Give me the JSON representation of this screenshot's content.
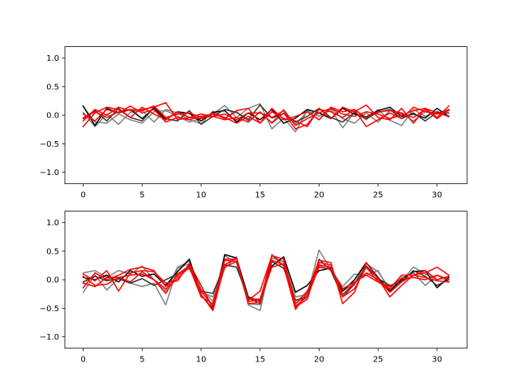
{
  "chart_data": [
    {
      "type": "line",
      "title": "",
      "xlabel": "",
      "ylabel": "",
      "xlim": [
        -1.55,
        32.55
      ],
      "ylim": [
        -1.2,
        1.2
      ],
      "xticks": [
        0,
        5,
        10,
        15,
        20,
        25,
        30
      ],
      "xtick_labels": [
        "0",
        "5",
        "10",
        "15",
        "20",
        "25",
        "30"
      ],
      "yticks": [
        1.0,
        0.5,
        0.0,
        -0.5,
        -1.0
      ],
      "ytick_labels": [
        "1.0",
        "0.5",
        "0.0",
        "−0.5",
        "−1.0"
      ],
      "grid": false,
      "x": [
        0,
        1,
        2,
        3,
        4,
        5,
        6,
        7,
        8,
        9,
        10,
        11,
        12,
        13,
        14,
        15,
        16,
        17,
        18,
        19,
        20,
        21,
        22,
        23,
        24,
        25,
        26,
        27,
        28,
        29,
        30,
        31
      ],
      "series": [
        {
          "color": "#808080",
          "values": [
            0.15,
            -0.12,
            -0.14,
            0.02,
            -0.08,
            -0.14,
            0.06,
            0.08,
            -0.02,
            -0.12,
            -0.06,
            0.02,
            0.17,
            -0.04,
            0.12,
            0.2,
            -0.24,
            -0.05,
            -0.29,
            0.08,
            -0.02,
            0.1,
            -0.22,
            0.05,
            -0.08,
            0.1,
            -0.09,
            -0.18,
            0.1,
            -0.02,
            0.07,
            -0.03
          ]
        },
        {
          "color": "#808080",
          "values": [
            0.05,
            -0.2,
            0.02,
            -0.16,
            0.05,
            0.08,
            -0.12,
            0.1,
            0.04,
            -0.08,
            -0.15,
            0.07,
            -0.05,
            0.06,
            -0.1,
            0.05,
            -0.13,
            0.1,
            -0.16,
            0.06,
            -0.08,
            0.12,
            -0.06,
            -0.14,
            0.04,
            -0.12,
            0.08,
            0.02,
            -0.1,
            0.06,
            0.03,
            0.1
          ]
        },
        {
          "color": "#000000",
          "values": [
            0.16,
            -0.18,
            0.12,
            0.04,
            0.1,
            -0.06,
            0.12,
            -0.08,
            0.06,
            0.03,
            -0.1,
            0.05,
            0.08,
            -0.12,
            0.04,
            -0.08,
            0.1,
            -0.14,
            -0.05,
            0.1,
            0.04,
            -0.06,
            0.12,
            0.02,
            -0.03,
            0.08,
            0.14,
            -0.02,
            0.02,
            -0.05,
            0.12,
            -0.02
          ]
        },
        {
          "color": "#333333",
          "values": [
            -0.05,
            0.08,
            -0.1,
            0.12,
            -0.04,
            -0.1,
            0.14,
            -0.06,
            -0.1,
            0.08,
            -0.16,
            -0.02,
            0.1,
            0.05,
            -0.08,
            0.18,
            -0.05,
            0.03,
            -0.12,
            -0.02,
            0.12,
            -0.04,
            -0.12,
            0.05,
            -0.06,
            0.05,
            0.1,
            -0.06,
            0.04,
            -0.1,
            0.05,
            0.04
          ]
        },
        {
          "color": "#ff0000",
          "values": [
            -0.1,
            0.1,
            0.0,
            0.14,
            0.08,
            0.1,
            0.14,
            0.22,
            -0.08,
            -0.04,
            -0.06,
            0.04,
            -0.06,
            0.08,
            0.12,
            -0.14,
            0.06,
            -0.06,
            -0.1,
            -0.2,
            0.12,
            -0.06,
            0.14,
            0.06,
            0.18,
            -0.04,
            -0.08,
            0.12,
            -0.14,
            0.12,
            -0.04,
            0.16
          ]
        },
        {
          "color": "#ff0000",
          "values": [
            -0.2,
            0.04,
            0.14,
            0.1,
            -0.04,
            0.14,
            0.02,
            -0.08,
            0.06,
            -0.04,
            0.02,
            -0.02,
            -0.08,
            -0.04,
            -0.12,
            0.06,
            -0.14,
            0.04,
            -0.24,
            -0.16,
            0.1,
            0.06,
            -0.04,
            0.1,
            -0.2,
            -0.08,
            0.04,
            -0.06,
            0.14,
            0.06,
            0.02,
            0.08
          ]
        },
        {
          "color": "#ff0000",
          "values": [
            0.02,
            -0.1,
            0.1,
            0.04,
            0.16,
            0.04,
            0.1,
            -0.12,
            -0.04,
            -0.08,
            -0.02,
            0.02,
            -0.04,
            -0.14,
            -0.02,
            -0.14,
            0.12,
            -0.08,
            -0.02,
            0.06,
            -0.08,
            0.14,
            0.06,
            0.1,
            -0.04,
            0.06,
            0.08,
            0.04,
            -0.04,
            0.1,
            -0.06,
            0.1
          ]
        },
        {
          "color": "#ff0000",
          "values": [
            -0.06,
            0.06,
            -0.04,
            0.06,
            0.1,
            0.08,
            0.16,
            -0.04,
            0.02,
            0.04,
            -0.04,
            -0.02,
            0.02,
            -0.08,
            0.04,
            0.04,
            -0.04,
            0.08,
            -0.18,
            -0.06,
            0.04,
            0.12,
            0.02,
            -0.02,
            0.06,
            0.02,
            -0.06,
            0.0,
            0.08,
            0.12,
            0.04,
            -0.02
          ]
        }
      ]
    },
    {
      "type": "line",
      "title": "",
      "xlabel": "",
      "ylabel": "",
      "xlim": [
        -1.55,
        32.55
      ],
      "ylim": [
        -1.2,
        1.2
      ],
      "xticks": [
        0,
        5,
        10,
        15,
        20,
        25,
        30
      ],
      "xtick_labels": [
        "0",
        "5",
        "10",
        "15",
        "20",
        "25",
        "30"
      ],
      "yticks": [
        1.0,
        0.5,
        0.0,
        -0.5,
        -1.0
      ],
      "ytick_labels": [
        "1.0",
        "0.5",
        "0.0",
        "−0.5",
        "−1.0"
      ],
      "grid": false,
      "x": [
        0,
        1,
        2,
        3,
        4,
        5,
        6,
        7,
        8,
        9,
        10,
        11,
        12,
        13,
        14,
        15,
        16,
        17,
        18,
        19,
        20,
        21,
        22,
        23,
        24,
        25,
        26,
        27,
        28,
        29,
        30,
        31
      ],
      "series": [
        {
          "color": "#808080",
          "values": [
            -0.22,
            0.08,
            -0.18,
            0.02,
            -0.06,
            -0.12,
            -0.06,
            -0.44,
            0.2,
            0.28,
            -0.22,
            -0.3,
            0.2,
            0.4,
            -0.44,
            -0.54,
            0.38,
            0.32,
            -0.3,
            -0.26,
            0.52,
            0.18,
            -0.2,
            -0.06,
            0.28,
            0.14,
            -0.16,
            -0.02,
            0.22,
            0.1,
            0.0,
            0.04
          ]
        },
        {
          "color": "#808080",
          "values": [
            0.12,
            0.16,
            0.04,
            0.16,
            0.1,
            0.24,
            0.0,
            -0.2,
            0.22,
            0.32,
            -0.16,
            -0.38,
            0.42,
            0.3,
            -0.42,
            -0.44,
            0.42,
            0.3,
            -0.42,
            -0.26,
            0.24,
            0.18,
            -0.12,
            0.1,
            0.08,
            0.16,
            -0.2,
            0.04,
            0.12,
            -0.1,
            0.08,
            -0.04
          ]
        },
        {
          "color": "#000000",
          "values": [
            0.04,
            0.0,
            0.08,
            -0.04,
            0.16,
            0.06,
            0.1,
            -0.1,
            0.14,
            0.36,
            -0.26,
            -0.52,
            0.44,
            0.38,
            -0.3,
            -0.38,
            0.24,
            0.4,
            -0.22,
            -0.1,
            0.16,
            0.2,
            -0.2,
            0.0,
            0.3,
            0.04,
            -0.2,
            0.0,
            0.14,
            0.16,
            -0.14,
            0.04
          ]
        },
        {
          "color": "#333333",
          "values": [
            -0.04,
            0.06,
            -0.02,
            0.02,
            -0.06,
            0.02,
            -0.1,
            0.0,
            0.1,
            0.2,
            -0.2,
            -0.24,
            0.26,
            0.22,
            -0.32,
            -0.42,
            0.32,
            0.2,
            -0.36,
            -0.3,
            0.36,
            0.16,
            -0.3,
            -0.08,
            0.24,
            0.02,
            -0.1,
            -0.04,
            0.16,
            0.06,
            -0.1,
            0.0
          ]
        },
        {
          "color": "#ff0000",
          "values": [
            0.1,
            -0.02,
            0.16,
            -0.2,
            0.12,
            0.16,
            0.14,
            -0.06,
            -0.02,
            0.28,
            -0.1,
            -0.5,
            0.34,
            0.32,
            -0.36,
            -0.2,
            0.42,
            0.36,
            -0.42,
            -0.2,
            0.26,
            0.22,
            -0.26,
            -0.06,
            0.12,
            0.0,
            -0.22,
            -0.04,
            0.08,
            0.12,
            0.22,
            0.08
          ]
        },
        {
          "color": "#ff0000",
          "values": [
            -0.14,
            0.12,
            0.0,
            0.08,
            0.18,
            0.22,
            0.16,
            -0.12,
            0.06,
            0.26,
            -0.26,
            -0.54,
            0.26,
            0.38,
            -0.42,
            -0.4,
            0.44,
            0.24,
            -0.52,
            -0.22,
            0.34,
            0.3,
            -0.42,
            -0.22,
            0.3,
            0.02,
            -0.3,
            -0.1,
            0.08,
            0.16,
            0.0,
            0.06
          ]
        },
        {
          "color": "#ff0000",
          "values": [
            0.06,
            -0.1,
            -0.08,
            0.04,
            0.08,
            0.1,
            0.0,
            -0.24,
            0.1,
            0.24,
            -0.2,
            -0.46,
            0.22,
            0.32,
            -0.34,
            -0.34,
            0.34,
            0.26,
            -0.48,
            -0.34,
            0.3,
            0.26,
            -0.3,
            -0.16,
            0.22,
            -0.04,
            -0.16,
            0.08,
            0.08,
            0.04,
            -0.02,
            -0.04
          ]
        },
        {
          "color": "#ff0000",
          "values": [
            -0.06,
            -0.12,
            0.04,
            0.04,
            -0.04,
            0.14,
            0.0,
            -0.16,
            0.02,
            0.22,
            -0.3,
            -0.42,
            0.36,
            0.36,
            -0.38,
            -0.36,
            0.22,
            0.28,
            -0.46,
            -0.3,
            0.22,
            0.18,
            -0.16,
            -0.04,
            0.08,
            -0.04,
            -0.12,
            0.02,
            0.04,
            0.0,
            0.08,
            0.0
          ]
        }
      ]
    }
  ]
}
